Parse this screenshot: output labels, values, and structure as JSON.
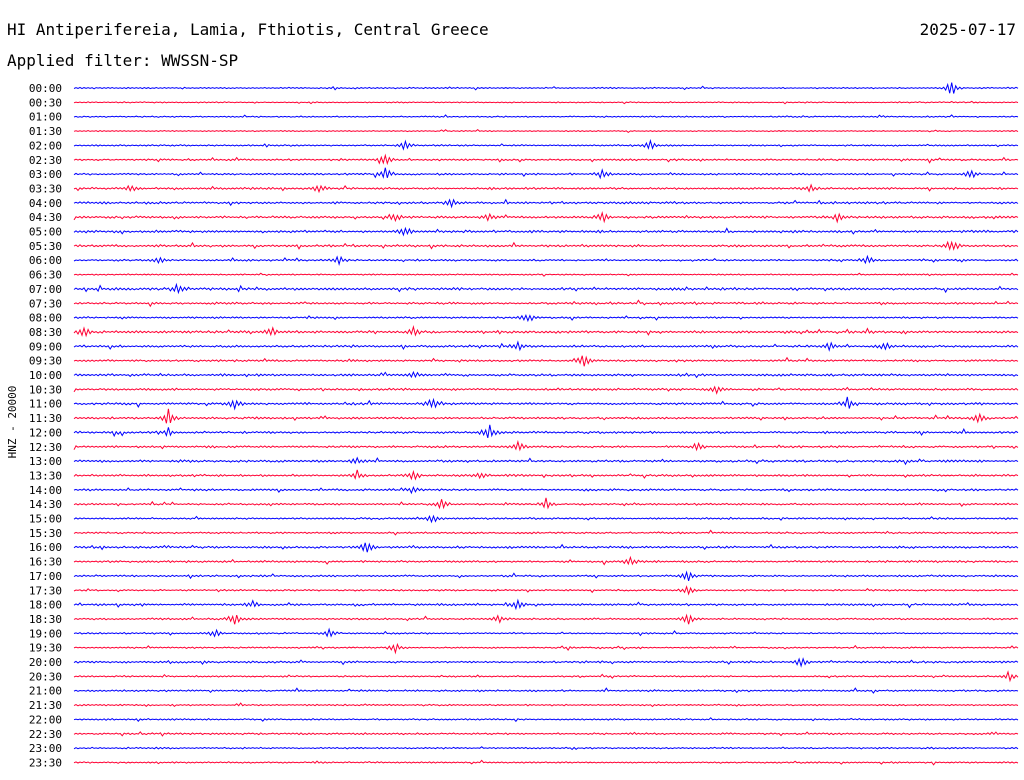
{
  "header": {
    "title": "HI Antiperifereia, Lamia, Fthiotis, Central Greece",
    "date": "2025-07-17",
    "filter": "Applied filter: WWSSN-SP"
  },
  "chart_data": {
    "type": "line",
    "description_kind": "helicorder",
    "ylabel": "HNZ - 20000",
    "colors": [
      "#0000ff",
      "#ff0033"
    ],
    "rows": [
      "00:00",
      "00:30",
      "01:00",
      "01:30",
      "02:00",
      "02:30",
      "03:00",
      "03:30",
      "04:00",
      "04:30",
      "05:00",
      "05:30",
      "06:00",
      "06:30",
      "07:00",
      "07:30",
      "08:00",
      "08:30",
      "09:00",
      "09:30",
      "10:00",
      "10:30",
      "11:00",
      "11:30",
      "12:00",
      "12:30",
      "13:00",
      "13:30",
      "14:00",
      "14:30",
      "15:00",
      "15:30",
      "16:00",
      "16:30",
      "17:00",
      "17:30",
      "18:00",
      "18:30",
      "19:00",
      "19:30",
      "20:00",
      "20:30",
      "21:00",
      "21:30",
      "22:00",
      "22:30",
      "23:00",
      "23:30"
    ],
    "noise_level": [
      0.6,
      0.5,
      0.6,
      0.5,
      0.7,
      0.8,
      0.8,
      0.9,
      1.0,
      1.0,
      1.1,
      1.0,
      0.8,
      0.6,
      1.1,
      0.9,
      0.8,
      1.1,
      1.0,
      0.9,
      1.0,
      0.9,
      1.0,
      0.9,
      1.0,
      0.9,
      1.0,
      0.9,
      0.9,
      0.8,
      0.8,
      0.8,
      1.0,
      0.9,
      0.8,
      0.7,
      0.9,
      0.8,
      0.7,
      0.7,
      0.9,
      0.7,
      0.8,
      0.7,
      0.7,
      0.8,
      0.7,
      0.7
    ],
    "events": [
      {
        "row": 0,
        "t": 0.93,
        "amp": 9
      },
      {
        "row": 4,
        "t": 0.35,
        "amp": 5
      },
      {
        "row": 4,
        "t": 0.61,
        "amp": 6
      },
      {
        "row": 5,
        "t": 0.33,
        "amp": 6
      },
      {
        "row": 6,
        "t": 0.33,
        "amp": 7
      },
      {
        "row": 6,
        "t": 0.56,
        "amp": 6
      },
      {
        "row": 6,
        "t": 0.95,
        "amp": 5
      },
      {
        "row": 7,
        "t": 0.06,
        "amp": 4
      },
      {
        "row": 7,
        "t": 0.26,
        "amp": 5
      },
      {
        "row": 7,
        "t": 0.78,
        "amp": 4
      },
      {
        "row": 8,
        "t": 0.4,
        "amp": 5
      },
      {
        "row": 9,
        "t": 0.34,
        "amp": 5
      },
      {
        "row": 9,
        "t": 0.44,
        "amp": 4
      },
      {
        "row": 9,
        "t": 0.56,
        "amp": 6
      },
      {
        "row": 9,
        "t": 0.81,
        "amp": 4
      },
      {
        "row": 10,
        "t": 0.35,
        "amp": 7
      },
      {
        "row": 11,
        "t": 0.93,
        "amp": 6
      },
      {
        "row": 12,
        "t": 0.09,
        "amp": 4
      },
      {
        "row": 12,
        "t": 0.28,
        "amp": 4
      },
      {
        "row": 12,
        "t": 0.84,
        "amp": 5
      },
      {
        "row": 14,
        "t": 0.11,
        "amp": 6
      },
      {
        "row": 16,
        "t": 0.48,
        "amp": 5
      },
      {
        "row": 17,
        "t": 0.01,
        "amp": 6
      },
      {
        "row": 17,
        "t": 0.21,
        "amp": 5
      },
      {
        "row": 17,
        "t": 0.36,
        "amp": 5
      },
      {
        "row": 18,
        "t": 0.47,
        "amp": 5
      },
      {
        "row": 18,
        "t": 0.8,
        "amp": 5
      },
      {
        "row": 18,
        "t": 0.86,
        "amp": 4
      },
      {
        "row": 19,
        "t": 0.54,
        "amp": 7
      },
      {
        "row": 20,
        "t": 0.36,
        "amp": 4
      },
      {
        "row": 21,
        "t": 0.68,
        "amp": 5
      },
      {
        "row": 22,
        "t": 0.17,
        "amp": 6
      },
      {
        "row": 22,
        "t": 0.38,
        "amp": 7
      },
      {
        "row": 22,
        "t": 0.82,
        "amp": 8
      },
      {
        "row": 23,
        "t": 0.1,
        "amp": 9
      },
      {
        "row": 23,
        "t": 0.96,
        "amp": 6
      },
      {
        "row": 24,
        "t": 0.1,
        "amp": 5
      },
      {
        "row": 24,
        "t": 0.44,
        "amp": 8
      },
      {
        "row": 25,
        "t": 0.47,
        "amp": 5
      },
      {
        "row": 25,
        "t": 0.66,
        "amp": 5
      },
      {
        "row": 26,
        "t": 0.3,
        "amp": 4
      },
      {
        "row": 27,
        "t": 0.3,
        "amp": 5
      },
      {
        "row": 27,
        "t": 0.36,
        "amp": 5
      },
      {
        "row": 27,
        "t": 0.43,
        "amp": 4
      },
      {
        "row": 28,
        "t": 0.36,
        "amp": 5
      },
      {
        "row": 29,
        "t": 0.39,
        "amp": 6
      },
      {
        "row": 29,
        "t": 0.5,
        "amp": 6
      },
      {
        "row": 30,
        "t": 0.38,
        "amp": 5
      },
      {
        "row": 32,
        "t": 0.31,
        "amp": 9
      },
      {
        "row": 33,
        "t": 0.59,
        "amp": 5
      },
      {
        "row": 34,
        "t": 0.65,
        "amp": 6
      },
      {
        "row": 35,
        "t": 0.65,
        "amp": 5
      },
      {
        "row": 36,
        "t": 0.19,
        "amp": 4
      },
      {
        "row": 36,
        "t": 0.47,
        "amp": 6
      },
      {
        "row": 37,
        "t": 0.17,
        "amp": 7
      },
      {
        "row": 37,
        "t": 0.45,
        "amp": 4
      },
      {
        "row": 37,
        "t": 0.65,
        "amp": 7
      },
      {
        "row": 38,
        "t": 0.15,
        "amp": 5
      },
      {
        "row": 38,
        "t": 0.27,
        "amp": 5
      },
      {
        "row": 39,
        "t": 0.34,
        "amp": 5
      },
      {
        "row": 40,
        "t": 0.77,
        "amp": 6
      },
      {
        "row": 41,
        "t": 0.99,
        "amp": 5
      }
    ]
  }
}
